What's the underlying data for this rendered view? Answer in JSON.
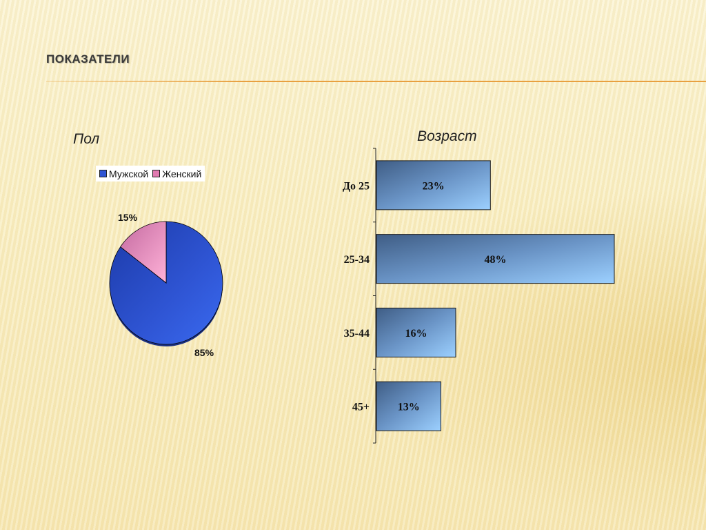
{
  "slide": {
    "title": "Показатели"
  },
  "chart_data": [
    {
      "type": "pie",
      "title": "Пол",
      "labels": [
        "Мужской",
        "Женский"
      ],
      "values": [
        85,
        15
      ],
      "data_labels": [
        "85%",
        "15%"
      ],
      "colors": [
        "#2f55d4",
        "#f2a6c8"
      ],
      "legend_position": "top"
    },
    {
      "type": "bar",
      "orientation": "horizontal",
      "title": "Возраст",
      "categories": [
        "До 25",
        "25-34",
        "35-44",
        "45+"
      ],
      "values": [
        23,
        48,
        16,
        13
      ],
      "data_labels": [
        "23%",
        "48%",
        "16%",
        "13%"
      ],
      "xlim": [
        0,
        50
      ],
      "grid": false,
      "bar_color": "#6a9ad0"
    }
  ]
}
